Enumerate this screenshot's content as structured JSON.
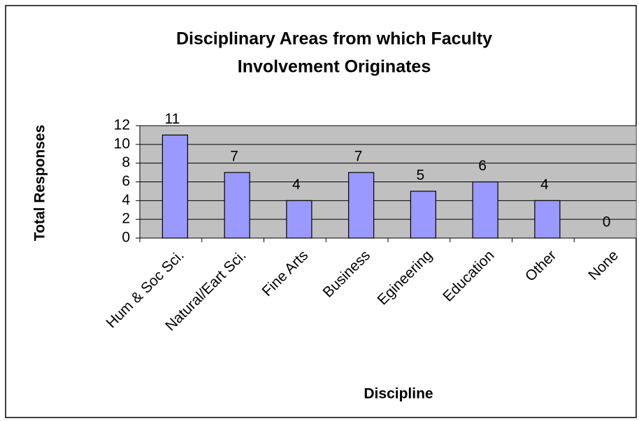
{
  "chart_data": {
    "type": "bar",
    "title": [
      "Disciplinary Areas from which Faculty",
      "Involvement Originates"
    ],
    "x_label": "Discipline",
    "y_label": "Total Responses",
    "categories": [
      "Hum & Soc Sci.",
      "Natural/Eart Sci.",
      "Fine Arts",
      "Business",
      "Egineering",
      "Education",
      "Other",
      "None"
    ],
    "values": [
      11,
      7,
      4,
      7,
      5,
      6,
      4,
      0
    ],
    "color": "#9999ff",
    "ylim": [
      0,
      12
    ],
    "yticks": [
      0,
      2,
      4,
      6,
      8,
      10,
      12
    ],
    "grid": true
  }
}
